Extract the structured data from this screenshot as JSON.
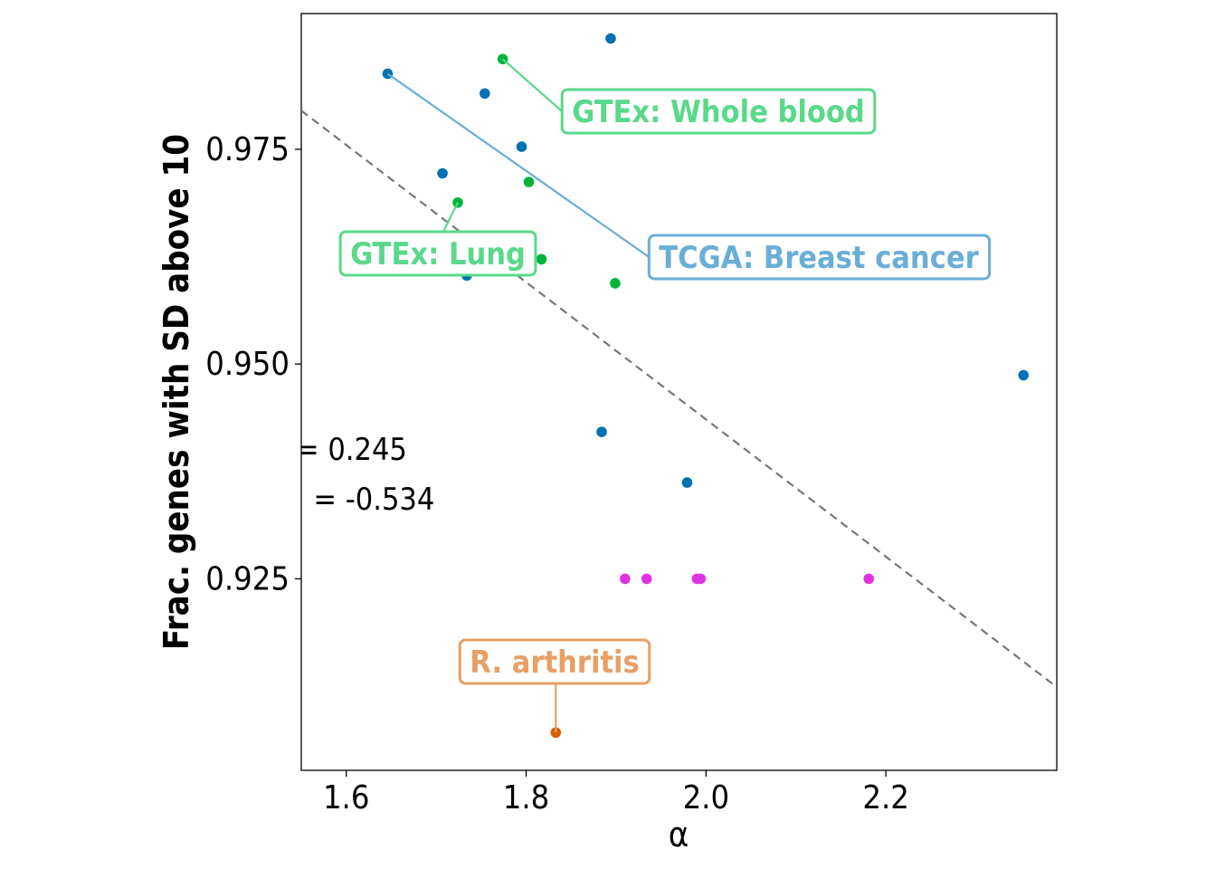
{
  "chart_data": {
    "type": "scatter",
    "xlabel": "α",
    "ylabel": "Frac. genes with SD above 10",
    "xlim": [
      1.55,
      2.39
    ],
    "ylim": [
      0.9027,
      0.9908
    ],
    "xticks": [
      1.6,
      1.8,
      2.0,
      2.2
    ],
    "xtick_labels": [
      "1.6",
      "1.8",
      "2.0",
      "2.2"
    ],
    "yticks": [
      0.925,
      0.95,
      0.975
    ],
    "ytick_labels": [
      "0.925",
      "0.950",
      "0.975"
    ],
    "grid": false,
    "stats": [
      "= 0.245",
      ". = -0.534"
    ],
    "regression_line": {
      "x": [
        1.55,
        2.39
      ],
      "y": [
        0.9795,
        0.9124
      ]
    },
    "series": [
      {
        "color": "#0072b2",
        "x": [
          1.646,
          1.707,
          1.734,
          1.754,
          1.795,
          1.884,
          1.894,
          1.979,
          2.353
        ],
        "y": [
          0.9838,
          0.9722,
          0.9603,
          0.9815,
          0.9753,
          0.9421,
          0.9879,
          0.9362,
          0.9487
        ]
      },
      {
        "color": "#00b33c",
        "x": [
          1.724,
          1.774,
          1.803,
          1.817,
          1.899
        ],
        "y": [
          0.9688,
          0.9855,
          0.9712,
          0.9622,
          0.9594
        ]
      },
      {
        "color": "#e032e0",
        "x": [
          1.91,
          1.934,
          1.99,
          1.994,
          2.181
        ],
        "y": [
          0.925,
          0.925,
          0.925,
          0.925,
          0.925
        ]
      },
      {
        "color": "#d55e00",
        "x": [
          1.833
        ],
        "y": [
          0.9071
        ]
      }
    ],
    "annotations": [
      {
        "text": "GTEx: Whole blood",
        "color": "#59d98a",
        "x": 1.774,
        "y": 0.9855
      },
      {
        "text": "GTEx: Lung",
        "color": "#59d98a",
        "x": 1.724,
        "y": 0.9688
      },
      {
        "text": "TCGA: Breast cancer",
        "color": "#6aaed6",
        "x": 1.646,
        "y": 0.9838
      },
      {
        "text": "R. arthritis",
        "color": "#e69f66",
        "x": 1.833,
        "y": 0.9071
      }
    ]
  }
}
